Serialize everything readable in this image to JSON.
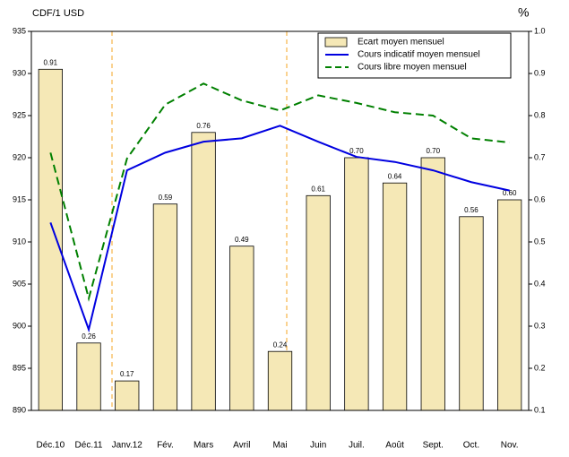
{
  "chart_data": {
    "type": "bar",
    "y_label": "CDF/1 USD",
    "y2_label": "%",
    "categories": [
      "Déc.10",
      "Déc.11",
      "Janv.12",
      "Fév.",
      "Mars",
      "Avril",
      "Mai",
      "Juin",
      "Juil.",
      "Août",
      "Sept.",
      "Oct.",
      "Nov."
    ],
    "series": [
      {
        "name": "Ecart moyen mensuel",
        "type": "bar",
        "axis": "y2",
        "color": "#f5e8b6",
        "values": [
          0.91,
          0.26,
          0.17,
          0.59,
          0.76,
          0.49,
          0.24,
          0.61,
          0.7,
          0.64,
          0.7,
          0.56,
          0.6
        ],
        "value_labels": [
          "0.91",
          "0.26",
          "0.17",
          "0.59",
          "0.76",
          "0.49",
          "0.24",
          "0.61",
          "0.70",
          "0.64",
          "0.70",
          "0.56",
          "0.60"
        ]
      },
      {
        "name": "Cours indicatif moyen mensuel",
        "type": "line",
        "axis": "y",
        "color": "#0000e0",
        "dashed": false,
        "values": [
          912.3,
          899.6,
          918.5,
          920.6,
          921.9,
          922.3,
          923.8,
          921.9,
          920.1,
          919.5,
          918.5,
          917.1,
          916.1
        ]
      },
      {
        "name": "Cours libre moyen mensuel",
        "type": "line",
        "axis": "y",
        "color": "#008000",
        "dashed": true,
        "values": [
          920.6,
          903.3,
          919.9,
          926.3,
          928.8,
          926.8,
          925.6,
          927.4,
          926.5,
          925.4,
          925.0,
          922.3,
          921.8
        ]
      }
    ],
    "ylim": [
      890,
      935
    ],
    "yticks": [
      890,
      895,
      900,
      905,
      910,
      915,
      920,
      925,
      930,
      935
    ],
    "y2lim": [
      0.1,
      1.0
    ],
    "y2ticks": [
      0.1,
      0.2,
      0.3,
      0.4,
      0.5,
      0.6,
      0.7,
      0.8,
      0.9,
      {
        "value": 1.0,
        "label": "1.0"
      }
    ],
    "legend": "top-right"
  }
}
